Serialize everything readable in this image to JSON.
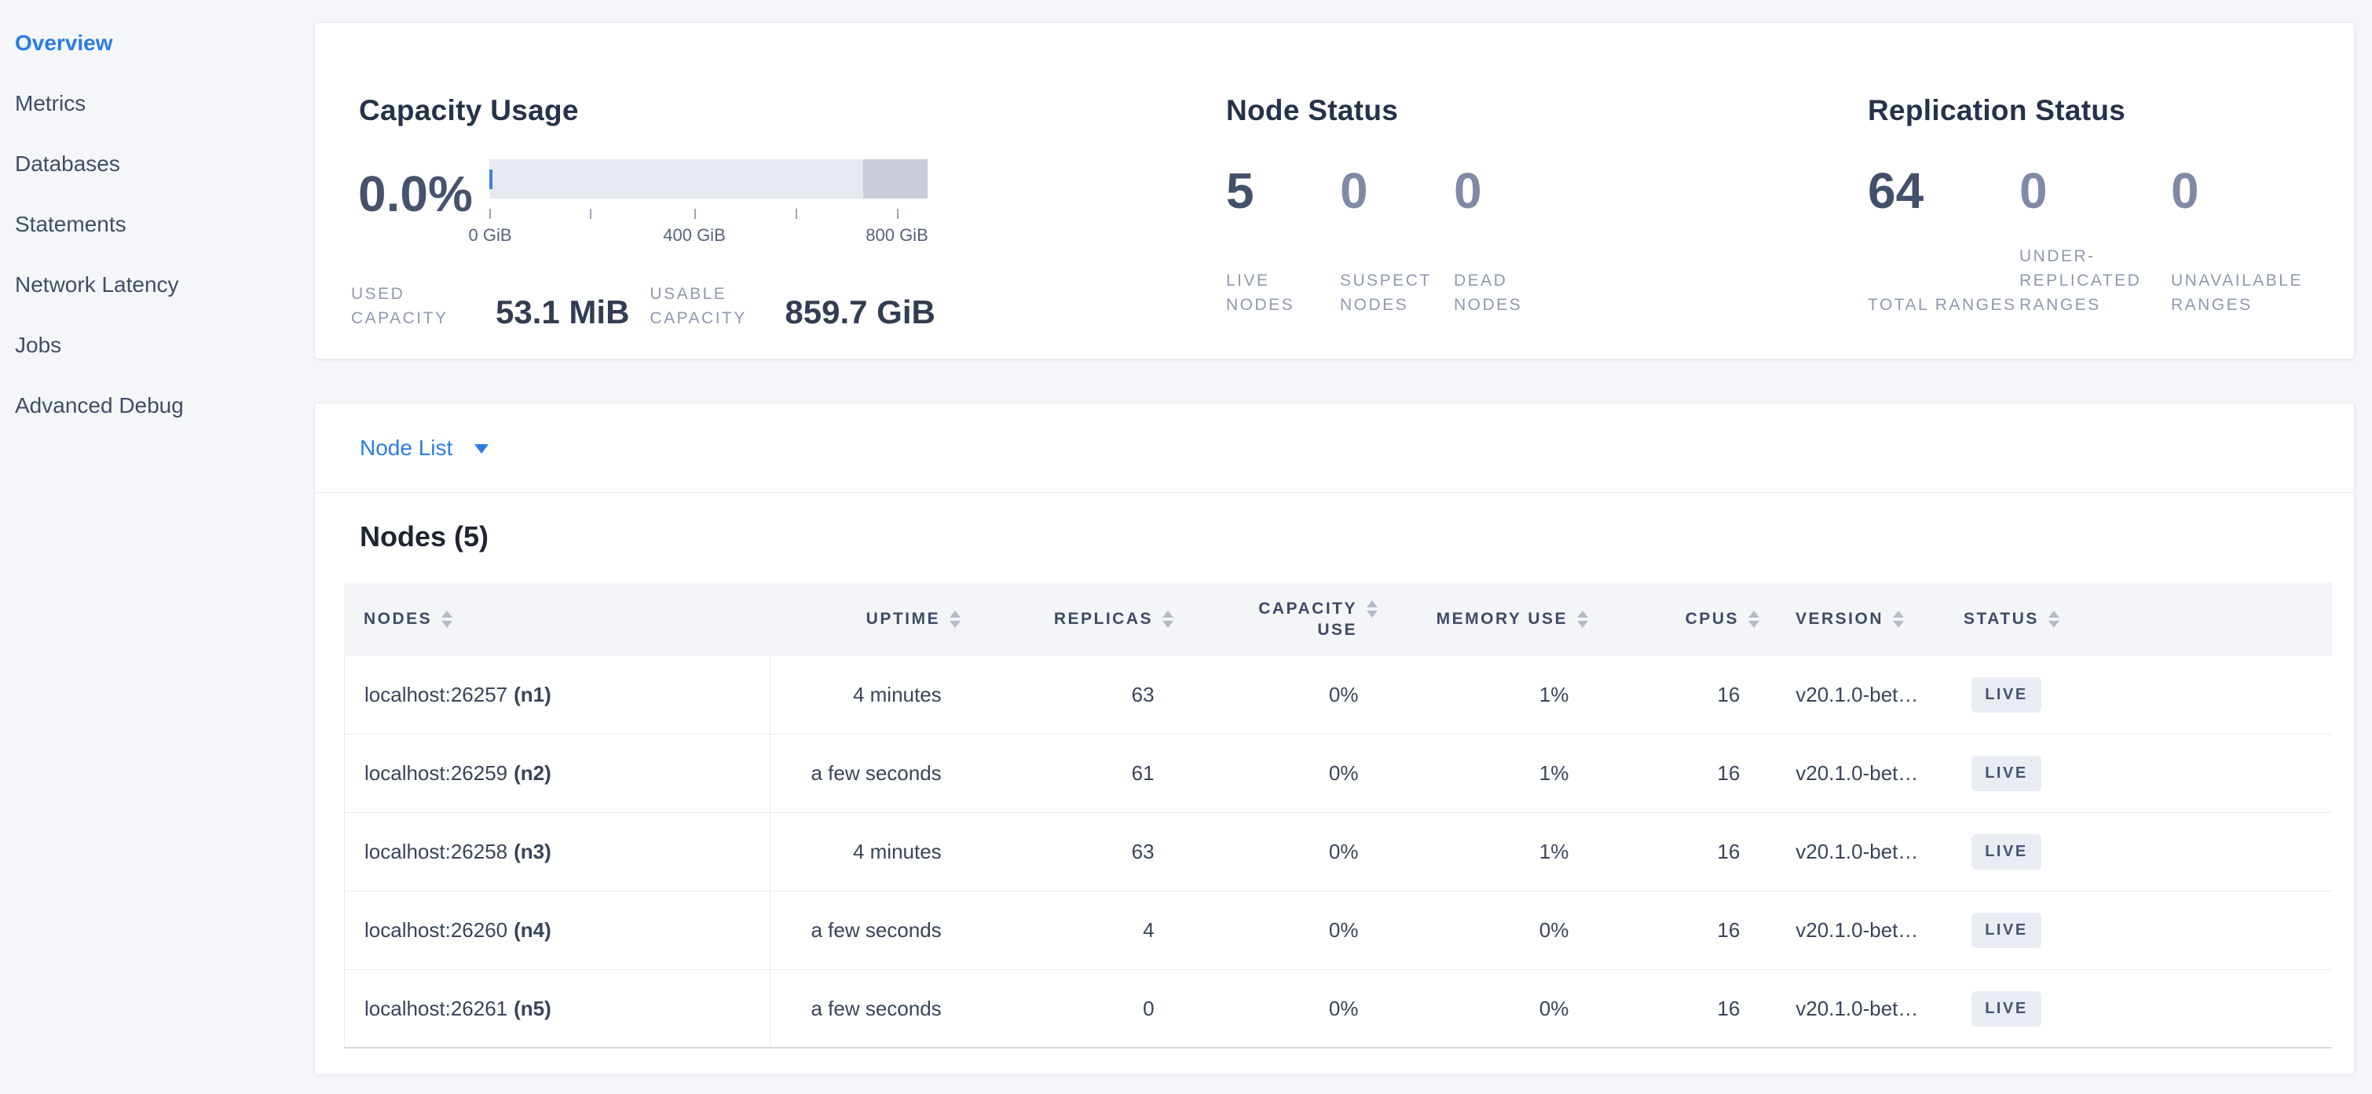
{
  "colors": {
    "accent_blue": "#2b7de5",
    "active_nav_blue": "#2a7ce4",
    "bar_fill_light": "#e6e9ef",
    "bar_fill_dark": "#c9cdd8",
    "bar_used_blue": "#3f7ee8",
    "badge_bg": "#e9ecf3",
    "badge_text": "#46536e",
    "page_bg": "#f4f6fa"
  },
  "sidebar": {
    "items": [
      {
        "label": "Overview"
      },
      {
        "label": "Metrics"
      },
      {
        "label": "Databases"
      },
      {
        "label": "Statements"
      },
      {
        "label": "Network Latency"
      },
      {
        "label": "Jobs"
      },
      {
        "label": "Advanced Debug"
      }
    ]
  },
  "capacity": {
    "title": "Capacity Usage",
    "percent": "0.0%",
    "axis_tick_labels": [
      "0 GiB",
      "400 GiB",
      "800 GiB"
    ],
    "stats": [
      {
        "label": "USED CAPACITY",
        "value": "53.1 MiB"
      },
      {
        "label": "USABLE CAPACITY",
        "value": "859.7 GiB"
      }
    ]
  },
  "node_status": {
    "title": "Node Status",
    "stats": [
      {
        "value": "5",
        "label": "LIVE NODES"
      },
      {
        "value": "0",
        "label": "SUSPECT NODES"
      },
      {
        "value": "0",
        "label": "DEAD NODES"
      }
    ]
  },
  "replication": {
    "title": "Replication Status",
    "stats": [
      {
        "value": "64",
        "label": "TOTAL RANGES"
      },
      {
        "value": "0",
        "label": "UNDER-REPLICATED RANGES"
      },
      {
        "value": "0",
        "label": "UNAVAILABLE RANGES"
      }
    ]
  },
  "node_list": {
    "label": "Node List"
  },
  "nodes_table": {
    "title": "Nodes (5)",
    "columns": [
      "NODES",
      "UPTIME",
      "REPLICAS",
      "CAPACITY USE",
      "MEMORY USE",
      "CPUS",
      "VERSION",
      "STATUS"
    ],
    "capacity_col_line1": "CAPACITY",
    "capacity_col_line2": "USE",
    "rows": [
      {
        "host": "localhost:26257",
        "id": "(n1)",
        "uptime": "4 minutes",
        "replicas": "63",
        "capacity": "0%",
        "memory": "1%",
        "cpus": "16",
        "version": "v20.1.0-bet…",
        "status": "LIVE"
      },
      {
        "host": "localhost:26259",
        "id": "(n2)",
        "uptime": "a few seconds",
        "replicas": "61",
        "capacity": "0%",
        "memory": "1%",
        "cpus": "16",
        "version": "v20.1.0-bet…",
        "status": "LIVE"
      },
      {
        "host": "localhost:26258",
        "id": "(n3)",
        "uptime": "4 minutes",
        "replicas": "63",
        "capacity": "0%",
        "memory": "1%",
        "cpus": "16",
        "version": "v20.1.0-bet…",
        "status": "LIVE"
      },
      {
        "host": "localhost:26260",
        "id": "(n4)",
        "uptime": "a few seconds",
        "replicas": "4",
        "capacity": "0%",
        "memory": "0%",
        "cpus": "16",
        "version": "v20.1.0-bet…",
        "status": "LIVE"
      },
      {
        "host": "localhost:26261",
        "id": "(n5)",
        "uptime": "a few seconds",
        "replicas": "0",
        "capacity": "0%",
        "memory": "0%",
        "cpus": "16",
        "version": "v20.1.0-bet…",
        "status": "LIVE"
      }
    ]
  }
}
